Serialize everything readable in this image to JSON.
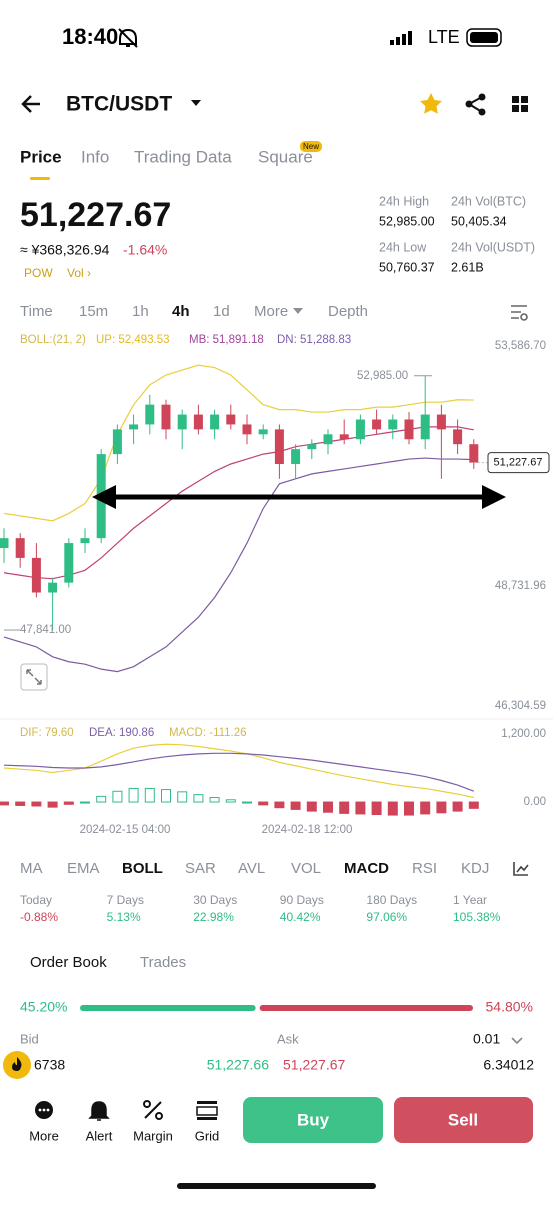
{
  "status": {
    "time": "18:40",
    "network": "LTE"
  },
  "header": {
    "pair": "BTC/USDT"
  },
  "tabs": [
    "Price",
    "Info",
    "Trading Data",
    "Square"
  ],
  "tab_badge": "New",
  "price": {
    "last": "51,227.67",
    "cny": "≈ ¥368,326.94",
    "change": "-1.64%",
    "tags": [
      "POW",
      "Vol ›"
    ]
  },
  "stats": [
    {
      "label": "24h High",
      "value": "52,985.00"
    },
    {
      "label": "24h Vol(BTC)",
      "value": "50,405.34"
    },
    {
      "label": "24h Low",
      "value": "50,760.37"
    },
    {
      "label": "24h Vol(USDT)",
      "value": "2.61B"
    }
  ],
  "timeframes": [
    "Time",
    "15m",
    "1h",
    "4h",
    "1d",
    "More",
    "Depth"
  ],
  "chart": {
    "boll_legend": [
      "BOLL:(21, 2)",
      "UP: 52,493.53",
      "MB: 51,891.18",
      "DN: 51,288.83"
    ],
    "ylim": [
      46304.59,
      53586.7
    ],
    "yticks": [
      {
        "value": 53586.7,
        "label": "53,586.70"
      },
      {
        "value": 48731.96,
        "label": "48,731.96"
      },
      {
        "value": 46304.59,
        "label": "46,304.59"
      }
    ],
    "high": {
      "value": 52985,
      "label": "52,985.00"
    },
    "low": {
      "value": 47841,
      "label": "47,841.00"
    },
    "last": {
      "value": 51227.67,
      "label": "51,227.67"
    },
    "candles": {
      "open": [
        49500,
        49700,
        49300,
        48600,
        48800,
        49600,
        49700,
        51400,
        51900,
        52000,
        52400,
        51900,
        52200,
        51900,
        52200,
        52000,
        51800,
        51900,
        51200,
        51500,
        51600,
        51800,
        51700,
        52100,
        51900,
        52100,
        51700,
        52200,
        51900,
        51600
      ],
      "high": [
        49900,
        49800,
        49600,
        48900,
        49700,
        49900,
        51500,
        52000,
        52200,
        52600,
        52500,
        52300,
        52400,
        52300,
        52400,
        52200,
        52000,
        52000,
        51600,
        51700,
        51900,
        52100,
        52200,
        52300,
        52200,
        52250,
        52985,
        52400,
        52100,
        51700
      ],
      "low": [
        49200,
        49100,
        48500,
        47841,
        48700,
        49400,
        49600,
        51200,
        51600,
        51800,
        51700,
        51500,
        51800,
        51700,
        51900,
        51600,
        51700,
        50900,
        50900,
        51300,
        51400,
        51600,
        51600,
        51800,
        51700,
        51600,
        51500,
        50900,
        51400,
        51100
      ],
      "close": [
        49700,
        49300,
        48600,
        48800,
        49600,
        49700,
        51400,
        51900,
        52000,
        52400,
        51900,
        52200,
        51900,
        52200,
        52000,
        51800,
        51900,
        51200,
        51500,
        51600,
        51800,
        51700,
        52100,
        51900,
        52100,
        51700,
        52200,
        51900,
        51600,
        51227.67
      ]
    },
    "boll": {
      "up": [
        50200,
        50150,
        50100,
        50050,
        50200,
        50400,
        50900,
        51800,
        52400,
        52800,
        53000,
        53100,
        53200,
        53150,
        53000,
        52700,
        52400,
        52300,
        52300,
        52250,
        52250,
        52300,
        52300,
        52350,
        52350,
        52400,
        52450,
        52450,
        52500,
        52493.53
      ],
      "mb": [
        49000,
        48950,
        48900,
        48880,
        48950,
        49050,
        49300,
        49600,
        49900,
        50150,
        50400,
        50650,
        50850,
        51050,
        51200,
        51300,
        51400,
        51450,
        51550,
        51600,
        51650,
        51700,
        51750,
        51800,
        51850,
        51900,
        51950,
        51950,
        51950,
        51891.18
      ],
      "dn": [
        47700,
        47600,
        47500,
        47300,
        47200,
        47150,
        47050,
        47000,
        47100,
        47300,
        47500,
        47800,
        48100,
        48500,
        49000,
        49600,
        50300,
        50800,
        50900,
        51000,
        51050,
        51100,
        51150,
        51200,
        51250,
        51300,
        51320,
        51300,
        51300,
        51288.83
      ]
    },
    "macd": {
      "legend": [
        "DIF: 79.60",
        "DEA: 190.86",
        "MACD: -111.26"
      ],
      "ylim": [
        -250,
        1250
      ],
      "yticks": [
        {
          "value": 1200,
          "label": "1,200.00"
        },
        {
          "value": 0,
          "label": "0.00"
        }
      ],
      "dif": [
        600,
        580,
        560,
        520,
        560,
        600,
        720,
        850,
        950,
        1000,
        1020,
        1010,
        980,
        940,
        900,
        850,
        780,
        700,
        640,
        580,
        520,
        460,
        410,
        360,
        310,
        270,
        240,
        190,
        140,
        79.6
      ],
      "dea": [
        650,
        640,
        630,
        610,
        600,
        600,
        620,
        660,
        710,
        760,
        800,
        830,
        850,
        860,
        860,
        850,
        830,
        800,
        770,
        740,
        700,
        660,
        620,
        580,
        540,
        500,
        450,
        380,
        300,
        190.86
      ],
      "hist": [
        -50,
        -60,
        -70,
        -90,
        -40,
        0,
        100,
        190,
        240,
        240,
        220,
        180,
        130,
        80,
        40,
        0,
        -50,
        -100,
        -130,
        -160,
        -180,
        -200,
        -210,
        -220,
        -230,
        -230,
        -210,
        -190,
        -160,
        -111.26
      ]
    },
    "dates": [
      "2024-02-15 04:00",
      "2024-02-18 12:00"
    ]
  },
  "indicators": [
    "MA",
    "EMA",
    "BOLL",
    "SAR",
    "AVL",
    "VOL",
    "MACD",
    "RSI",
    "KDJ"
  ],
  "performance": [
    {
      "period": "Today",
      "change": "-0.88%"
    },
    {
      "period": "7 Days",
      "change": "5.13%"
    },
    {
      "period": "30 Days",
      "change": "22.98%"
    },
    {
      "period": "90 Days",
      "change": "40.42%"
    },
    {
      "period": "180 Days",
      "change": "97.06%"
    },
    {
      "period": "1 Year",
      "change": "105.38%"
    }
  ],
  "order_book": {
    "tabs": [
      "Order Book",
      "Trades"
    ],
    "bid_ratio": {
      "value": 45.2,
      "label": "45.20%"
    },
    "ask_ratio": {
      "value": 54.8,
      "label": "54.80%"
    },
    "headers": [
      "Bid",
      "Ask"
    ],
    "precision": "0.01",
    "row": [
      "6738",
      "51,227.66",
      "51,227.67",
      "6.34012"
    ]
  },
  "bottom_nav": [
    "More",
    "Alert",
    "Margin",
    "Grid"
  ],
  "actions": [
    "Buy",
    "Sell"
  ]
}
